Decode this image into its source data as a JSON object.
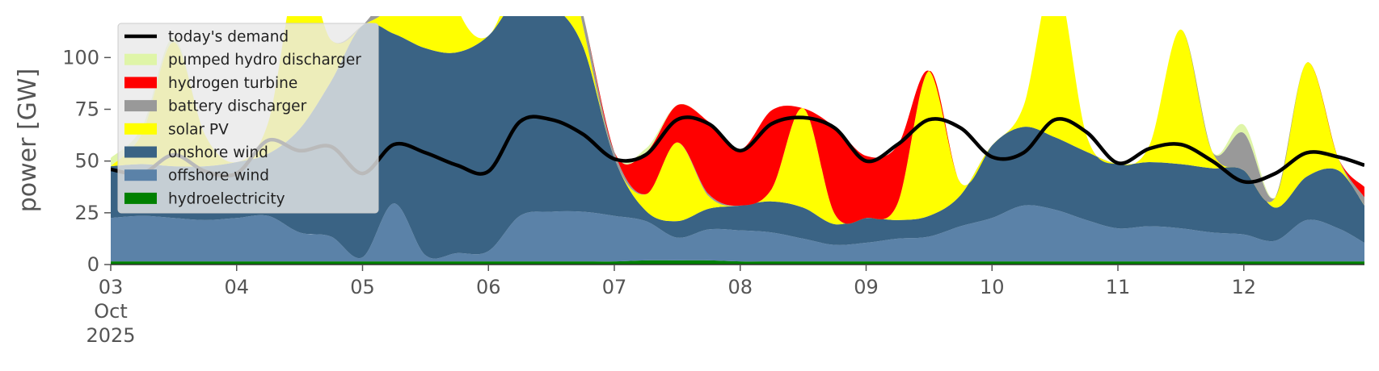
{
  "chart_data": {
    "type": "area",
    "title": "",
    "xlabel": "",
    "ylabel": "power [GW]",
    "ylim": [
      0,
      120
    ],
    "xlim": [
      "2025-10-03T00:00",
      "2025-10-12T23:00"
    ],
    "yticks": [
      0,
      25,
      50,
      75,
      100
    ],
    "xtick_labels": [
      "03\nOct\n2025",
      "04",
      "05",
      "06",
      "07",
      "08",
      "09",
      "10",
      "11",
      "12"
    ],
    "grid": false,
    "legend_placement": "upper-left",
    "x": [
      "2025-10-03T00:00",
      "2025-10-03T06:00",
      "2025-10-03T12:00",
      "2025-10-03T18:00",
      "2025-10-04T00:00",
      "2025-10-04T06:00",
      "2025-10-04T12:00",
      "2025-10-04T18:00",
      "2025-10-05T00:00",
      "2025-10-05T06:00",
      "2025-10-05T12:00",
      "2025-10-05T18:00",
      "2025-10-06T00:00",
      "2025-10-06T06:00",
      "2025-10-06T12:00",
      "2025-10-06T18:00",
      "2025-10-07T00:00",
      "2025-10-07T06:00",
      "2025-10-07T12:00",
      "2025-10-07T18:00",
      "2025-10-08T00:00",
      "2025-10-08T06:00",
      "2025-10-08T12:00",
      "2025-10-08T18:00",
      "2025-10-09T00:00",
      "2025-10-09T06:00",
      "2025-10-09T12:00",
      "2025-10-09T18:00",
      "2025-10-10T00:00",
      "2025-10-10T06:00",
      "2025-10-10T12:00",
      "2025-10-10T18:00",
      "2025-10-11T00:00",
      "2025-10-11T06:00",
      "2025-10-11T12:00",
      "2025-10-11T18:00",
      "2025-10-12T00:00",
      "2025-10-12T06:00",
      "2025-10-12T12:00",
      "2025-10-12T18:00",
      "2025-10-12T23:00"
    ],
    "stack_series": [
      {
        "name": "hydroelectricity",
        "color": "#008000",
        "values": [
          1.5,
          1.5,
          1.5,
          1.5,
          1.5,
          1.5,
          1.5,
          1.5,
          1.5,
          1.5,
          1.5,
          1.5,
          1.5,
          1.5,
          1.5,
          1.5,
          1.5,
          2,
          2,
          2,
          1.5,
          1.5,
          1.5,
          1.5,
          1.5,
          1.5,
          1.5,
          1.5,
          1.5,
          1.5,
          1.5,
          1.5,
          1.5,
          1.5,
          1.5,
          1.5,
          1.5,
          1.5,
          1.5,
          1.5,
          1.5
        ]
      },
      {
        "name": "offshore wind",
        "color": "#5b82a8",
        "values": [
          21,
          22,
          21,
          20,
          21,
          22,
          14,
          12,
          2,
          28,
          3,
          4,
          5,
          22,
          24,
          24,
          22,
          19,
          11,
          15,
          15,
          14,
          11,
          8,
          9,
          11,
          12,
          17,
          21,
          27,
          25,
          20,
          16,
          17,
          16,
          14,
          13,
          10,
          20,
          16,
          9
        ]
      },
      {
        "name": "onshore wind",
        "color": "#3a6384",
        "values": [
          25,
          25,
          25,
          26,
          27,
          30,
          50,
          75,
          112,
          82,
          100,
          97,
          104,
          106,
          100,
          80,
          28,
          5,
          8,
          10,
          12,
          15,
          15,
          10,
          12,
          9,
          10,
          15,
          35,
          38,
          35,
          33,
          31,
          31,
          31,
          31,
          31,
          16,
          21,
          28,
          18
        ]
      },
      {
        "name": "solar PV",
        "color": "#ffff00",
        "values": [
          0,
          15,
          60,
          15,
          0,
          15,
          80,
          20,
          0,
          18,
          80,
          22,
          0,
          18,
          60,
          10,
          0,
          8,
          38,
          6,
          0,
          6,
          48,
          5,
          0,
          8,
          70,
          6,
          0,
          10,
          78,
          8,
          0,
          8,
          65,
          8,
          0,
          5,
          55,
          6,
          0
        ]
      },
      {
        "name": "battery discharger",
        "color": "#999999",
        "values": [
          0,
          0,
          0,
          0,
          0,
          0,
          0,
          0,
          0,
          10,
          0,
          0,
          0,
          0,
          0,
          6,
          3,
          0,
          0,
          1,
          0,
          0,
          0,
          0,
          0,
          0,
          0,
          0,
          0,
          0,
          0,
          0,
          0,
          0,
          0,
          0,
          18,
          0,
          0,
          0,
          4
        ]
      },
      {
        "name": "hydrogen turbine",
        "color": "#ff0000",
        "values": [
          0,
          0,
          0,
          0,
          0,
          0,
          0,
          0,
          0,
          0,
          0,
          0,
          0,
          0,
          0,
          0,
          0,
          20,
          18,
          35,
          27,
          38,
          0,
          42,
          30,
          28,
          0,
          0,
          0,
          0,
          0,
          0,
          0,
          0,
          0,
          0,
          0,
          0,
          0,
          0,
          5
        ]
      },
      {
        "name": "pumped hydro discharger",
        "color": "#dff5a8",
        "values": [
          4,
          3,
          2,
          0,
          0,
          0,
          0,
          0,
          0,
          0,
          0,
          0,
          0,
          0,
          0,
          0,
          0,
          2,
          0,
          0,
          0,
          0,
          0,
          0,
          0,
          0,
          0,
          0,
          0,
          0,
          0,
          0,
          0,
          0,
          0,
          0,
          4,
          0,
          0,
          0,
          0
        ]
      }
    ],
    "demand_series": {
      "name": "today's demand",
      "color": "#000000",
      "values": [
        46,
        44,
        53,
        45,
        44,
        60,
        55,
        57,
        44,
        58,
        54,
        48,
        45,
        69,
        70,
        63,
        51,
        53,
        70,
        68,
        55,
        68,
        71,
        66,
        50,
        58,
        70,
        66,
        52,
        54,
        70,
        64,
        49,
        56,
        58,
        50,
        40,
        44,
        54,
        52,
        48
      ]
    },
    "legend": [
      {
        "label": "today's demand",
        "color": "#000000",
        "kind": "line"
      },
      {
        "label": "pumped hydro discharger",
        "color": "#dff5a8",
        "kind": "patch"
      },
      {
        "label": "hydrogen turbine",
        "color": "#ff0000",
        "kind": "patch"
      },
      {
        "label": "battery discharger",
        "color": "#999999",
        "kind": "patch"
      },
      {
        "label": "solar PV",
        "color": "#ffff00",
        "kind": "patch"
      },
      {
        "label": "onshore wind",
        "color": "#3a6384",
        "kind": "patch"
      },
      {
        "label": "offshore wind",
        "color": "#5b82a8",
        "kind": "patch"
      },
      {
        "label": "hydroelectricity",
        "color": "#008000",
        "kind": "patch"
      }
    ]
  }
}
